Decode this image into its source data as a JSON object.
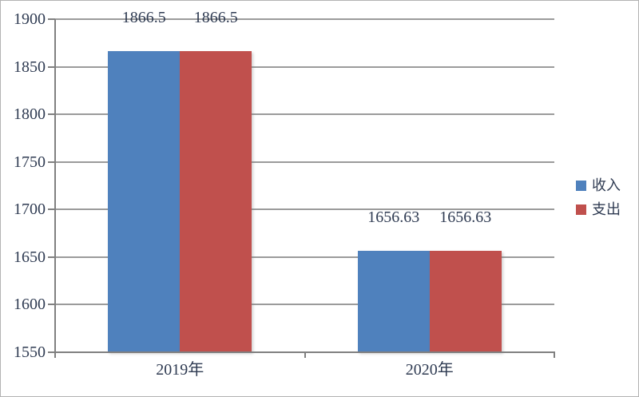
{
  "chart_data": {
    "type": "bar",
    "title": "",
    "xlabel": "",
    "ylabel": "",
    "categories": [
      "2019年",
      "2020年"
    ],
    "series": [
      {
        "name": "收入",
        "color": "#4f81bd",
        "values": [
          1866.5,
          1656.63
        ],
        "data_labels": [
          "1866.5",
          "1656.63"
        ]
      },
      {
        "name": "支出",
        "color": "#c0504d",
        "values": [
          1866.5,
          1656.63
        ],
        "data_labels": [
          "1866.5",
          "1656.63"
        ]
      }
    ],
    "ylim": [
      1550,
      1900
    ],
    "ytick_step": 50,
    "yticks": [
      1550,
      1600,
      1650,
      1700,
      1750,
      1800,
      1850,
      1900
    ],
    "grid": true,
    "legend_position": "right",
    "colors": {
      "axis": "#808080",
      "gridline": "#9b9b9b",
      "label_text": "#2f3b52",
      "background": "#ffffff",
      "border": "#b3b3b3"
    }
  }
}
